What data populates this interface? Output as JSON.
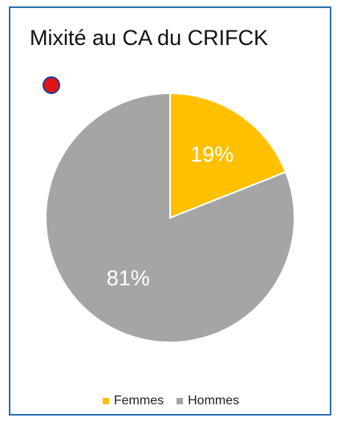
{
  "chart_data": {
    "type": "pie",
    "title": "Mixité au CA du CRIFCK",
    "categories": [
      "Femmes",
      "Hommes"
    ],
    "values": [
      19,
      81
    ],
    "labels": [
      "19%",
      "81%"
    ],
    "colors": [
      "#FFC000",
      "#A5A5A5"
    ],
    "legend_position": "bottom"
  },
  "marker": {
    "fill": "#e01414",
    "stroke": "#1f3f93"
  }
}
